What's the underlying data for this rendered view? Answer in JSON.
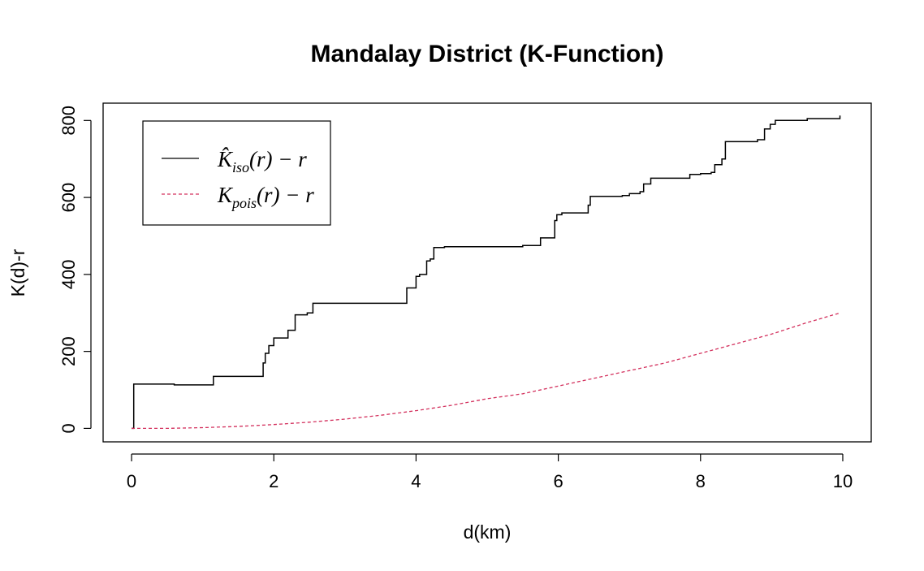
{
  "chart_data": {
    "type": "line",
    "title": "Mandalay District (K-Function)",
    "xlabel": "d(km)",
    "ylabel": "K(d)-r",
    "xlim": [
      -0.4,
      10.4
    ],
    "ylim": [
      -35,
      845
    ],
    "xticks": [
      0,
      2,
      4,
      6,
      8,
      10
    ],
    "yticks": [
      0,
      200,
      400,
      600,
      800
    ],
    "legend_position": "top-left",
    "series": [
      {
        "name": "K̂iso(r) − r",
        "legend_main": "K̂",
        "legend_sub": "iso",
        "legend_rest": "(r) − r",
        "color": "#000000",
        "style": "solid",
        "step": true,
        "x": [
          0.0,
          0.03,
          0.6,
          1.15,
          1.85,
          1.88,
          1.93,
          2.0,
          2.2,
          2.3,
          2.47,
          2.55,
          3.0,
          3.8,
          3.87,
          3.95,
          4.0,
          4.05,
          4.15,
          4.2,
          4.25,
          4.4,
          5.0,
          5.5,
          5.75,
          5.95,
          5.98,
          6.05,
          6.2,
          6.42,
          6.45,
          6.9,
          7.0,
          7.15,
          7.2,
          7.3,
          7.7,
          7.85,
          8.0,
          8.15,
          8.2,
          8.3,
          8.35,
          8.8,
          8.9,
          8.98,
          9.05,
          9.5,
          9.96
        ],
        "y": [
          0,
          115,
          113,
          135,
          170,
          195,
          215,
          235,
          255,
          295,
          300,
          325,
          325,
          325,
          365,
          365,
          395,
          400,
          435,
          440,
          470,
          472,
          472,
          475,
          495,
          540,
          555,
          560,
          560,
          580,
          603,
          605,
          610,
          615,
          635,
          650,
          650,
          660,
          662,
          665,
          685,
          700,
          745,
          750,
          778,
          790,
          800,
          805,
          813
        ]
      },
      {
        "name": "Kpois(r) − r",
        "legend_main": "K",
        "legend_sub": "pois",
        "legend_rest": "(r) − r",
        "color": "#d3305d",
        "style": "dashed",
        "step": false,
        "x": [
          0.0,
          0.5,
          1.0,
          1.5,
          2.0,
          2.5,
          3.0,
          3.5,
          4.0,
          4.5,
          5.0,
          5.5,
          6.0,
          6.5,
          7.0,
          7.5,
          8.0,
          8.5,
          9.0,
          9.5,
          9.96
        ],
        "y": [
          0,
          0,
          2,
          5,
          10,
          16,
          24,
          34,
          46,
          60,
          77,
          90,
          110,
          130,
          150,
          170,
          195,
          220,
          245,
          275,
          300
        ]
      }
    ]
  }
}
